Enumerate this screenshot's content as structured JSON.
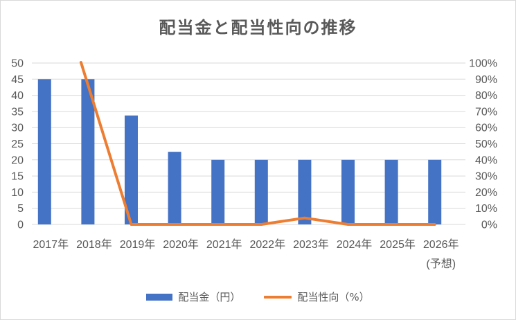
{
  "colors": {
    "bar": "#4472C4",
    "line": "#ED7D31",
    "grid": "#d9d9d9",
    "text": "#595959"
  },
  "chart_data": {
    "type": "bar",
    "title": "配当金と配当性向の推移",
    "categories": [
      "2017年",
      "2018年",
      "2019年",
      "2020年",
      "2021年",
      "2022年",
      "2023年",
      "2024年",
      "2025年",
      "2026年"
    ],
    "category_sublabels": [
      "",
      "",
      "",
      "",
      "",
      "",
      "",
      "",
      "",
      "(予想)"
    ],
    "series": [
      {
        "name": "配当金（円）",
        "type": "bar",
        "axis": "left",
        "values": [
          45,
          45,
          33.75,
          22.5,
          20,
          20,
          20,
          20,
          20,
          20
        ]
      },
      {
        "name": "配当性向（%）",
        "type": "line",
        "axis": "right",
        "values": [
          null,
          100,
          0,
          0,
          0,
          0,
          4,
          0,
          0,
          0
        ]
      }
    ],
    "y_left": {
      "min": 0,
      "max": 50,
      "step": 5
    },
    "y_right": {
      "min": 0,
      "max": 100,
      "step": 10,
      "unit": "%"
    },
    "grid": true,
    "legend_position": "bottom"
  }
}
